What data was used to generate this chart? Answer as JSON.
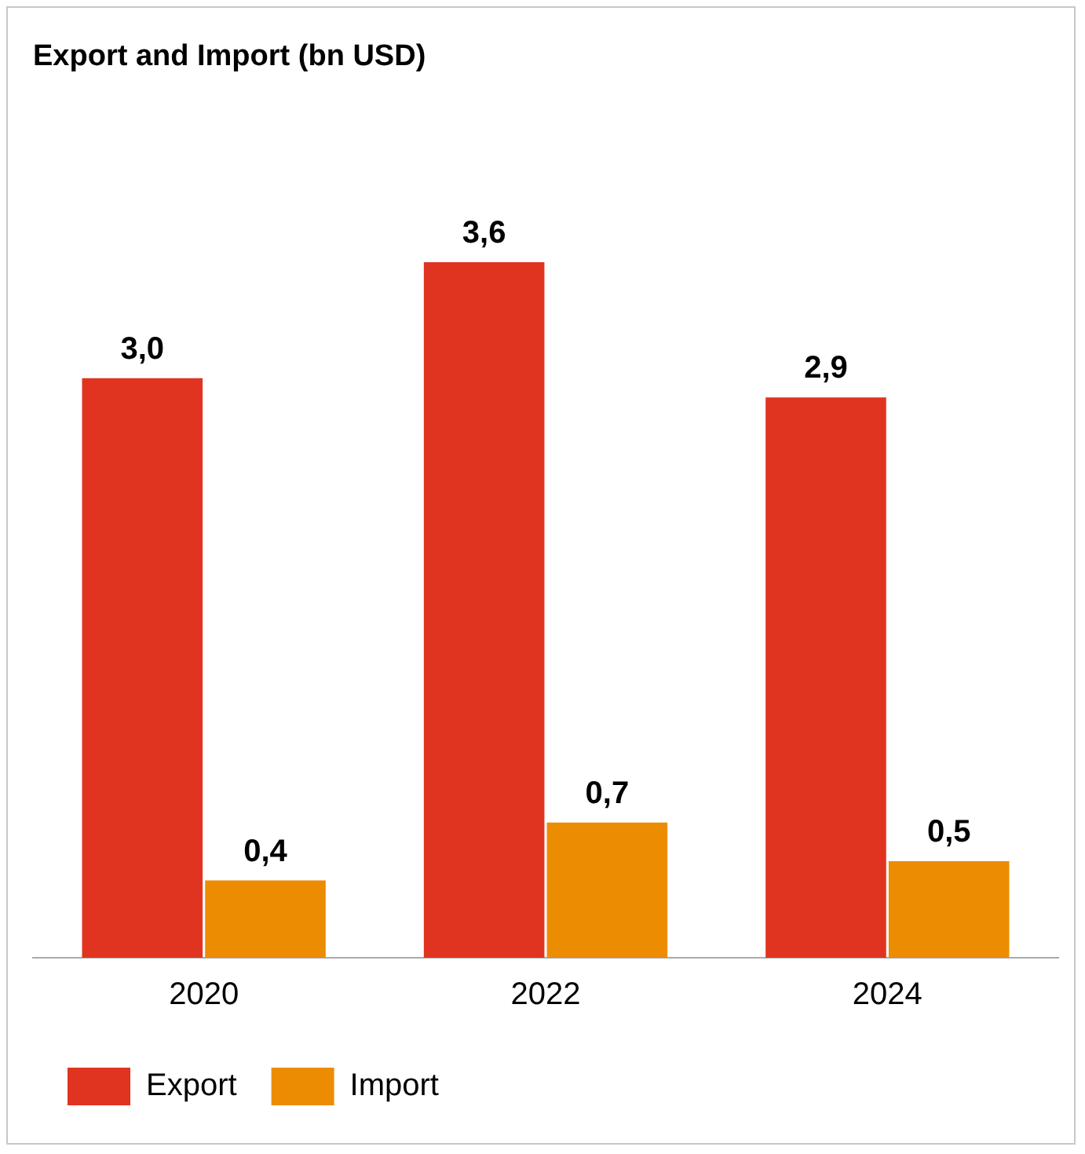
{
  "chart_data": {
    "type": "bar",
    "title": "Export and Import (bn USD)",
    "categories": [
      "2020",
      "2022",
      "2024"
    ],
    "series": [
      {
        "name": "Export",
        "color": "#e03421",
        "values": [
          3.0,
          3.6,
          2.9
        ],
        "value_labels": [
          "3,0",
          "3,6",
          "2,9"
        ]
      },
      {
        "name": "Import",
        "color": "#ec8c00",
        "values": [
          0.4,
          0.7,
          0.5
        ],
        "value_labels": [
          "0,4",
          "0,7",
          "0,5"
        ]
      }
    ],
    "legend": "bottom left",
    "grid": false,
    "tick_labels": "x"
  }
}
